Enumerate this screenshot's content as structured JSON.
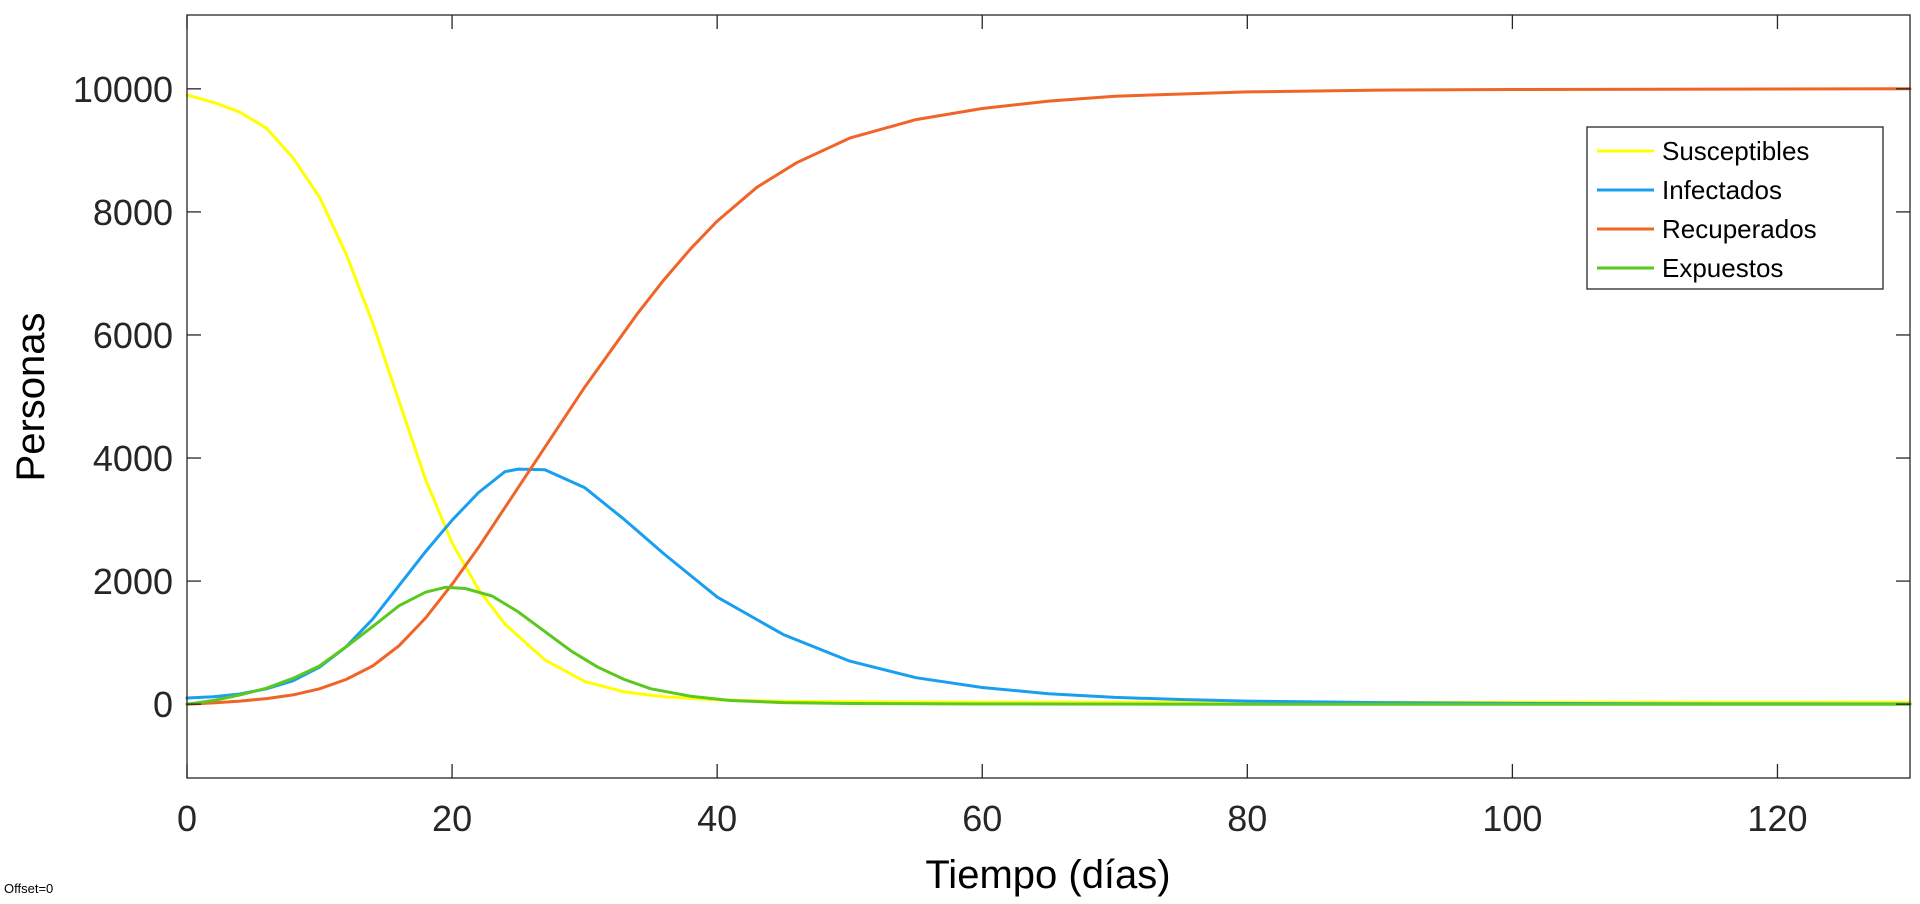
{
  "footer_note": "Offset=0",
  "chart_data": {
    "type": "line",
    "title": "",
    "xlabel": "Tiempo (días)",
    "ylabel": "Personas",
    "xlim": [
      0,
      130
    ],
    "ylim": [
      -1200,
      11200
    ],
    "xticks": [
      0,
      20,
      40,
      60,
      80,
      100,
      120
    ],
    "yticks": [
      0,
      2000,
      4000,
      6000,
      8000,
      10000
    ],
    "xtick_labels": [
      "0",
      "20",
      "40",
      "60",
      "80",
      "100",
      "120"
    ],
    "ytick_labels": [
      "0",
      "2000",
      "4000",
      "6000",
      "8000",
      "10000"
    ],
    "grid": false,
    "box": true,
    "legend_position": "top-right",
    "series": [
      {
        "name": "Susceptibles",
        "color": "#FFFF00",
        "points": [
          [
            0,
            9900
          ],
          [
            2,
            9780
          ],
          [
            4,
            9620
          ],
          [
            6,
            9360
          ],
          [
            8,
            8880
          ],
          [
            10,
            8240
          ],
          [
            12,
            7320
          ],
          [
            14,
            6200
          ],
          [
            16,
            4920
          ],
          [
            18,
            3650
          ],
          [
            20,
            2620
          ],
          [
            22,
            1860
          ],
          [
            24,
            1300
          ],
          [
            27,
            720
          ],
          [
            30,
            370
          ],
          [
            33,
            200
          ],
          [
            36,
            120
          ],
          [
            40,
            70
          ],
          [
            45,
            45
          ],
          [
            50,
            38
          ],
          [
            60,
            32
          ],
          [
            80,
            30
          ],
          [
            100,
            30
          ],
          [
            130,
            30
          ]
        ]
      },
      {
        "name": "Infectados",
        "color": "#1A9FF0",
        "points": [
          [
            0,
            100
          ],
          [
            2,
            120
          ],
          [
            4,
            165
          ],
          [
            6,
            250
          ],
          [
            8,
            380
          ],
          [
            10,
            600
          ],
          [
            12,
            930
          ],
          [
            14,
            1380
          ],
          [
            16,
            1930
          ],
          [
            18,
            2480
          ],
          [
            20,
            2990
          ],
          [
            22,
            3440
          ],
          [
            24,
            3780
          ],
          [
            25,
            3820
          ],
          [
            27,
            3810
          ],
          [
            30,
            3520
          ],
          [
            33,
            3000
          ],
          [
            36,
            2440
          ],
          [
            40,
            1740
          ],
          [
            45,
            1130
          ],
          [
            50,
            700
          ],
          [
            55,
            430
          ],
          [
            60,
            270
          ],
          [
            65,
            170
          ],
          [
            70,
            110
          ],
          [
            75,
            75
          ],
          [
            80,
            50
          ],
          [
            90,
            25
          ],
          [
            100,
            12
          ],
          [
            115,
            5
          ],
          [
            130,
            2
          ]
        ]
      },
      {
        "name": "Recuperados",
        "color": "#F06428",
        "points": [
          [
            0,
            0
          ],
          [
            2,
            20
          ],
          [
            4,
            50
          ],
          [
            6,
            90
          ],
          [
            8,
            150
          ],
          [
            10,
            250
          ],
          [
            12,
            400
          ],
          [
            14,
            620
          ],
          [
            16,
            950
          ],
          [
            18,
            1400
          ],
          [
            20,
            1950
          ],
          [
            22,
            2550
          ],
          [
            24,
            3200
          ],
          [
            26,
            3850
          ],
          [
            28,
            4500
          ],
          [
            30,
            5150
          ],
          [
            32,
            5750
          ],
          [
            34,
            6350
          ],
          [
            36,
            6900
          ],
          [
            38,
            7400
          ],
          [
            40,
            7850
          ],
          [
            43,
            8400
          ],
          [
            46,
            8800
          ],
          [
            50,
            9200
          ],
          [
            55,
            9500
          ],
          [
            60,
            9680
          ],
          [
            65,
            9800
          ],
          [
            70,
            9880
          ],
          [
            80,
            9950
          ],
          [
            90,
            9980
          ],
          [
            100,
            9990
          ],
          [
            130,
            10000
          ]
        ]
      },
      {
        "name": "Expuestos",
        "color": "#5AC81E",
        "points": [
          [
            0,
            0
          ],
          [
            2,
            60
          ],
          [
            4,
            150
          ],
          [
            6,
            260
          ],
          [
            8,
            420
          ],
          [
            10,
            620
          ],
          [
            12,
            930
          ],
          [
            14,
            1260
          ],
          [
            16,
            1600
          ],
          [
            18,
            1820
          ],
          [
            19.5,
            1900
          ],
          [
            21,
            1880
          ],
          [
            23,
            1760
          ],
          [
            25,
            1500
          ],
          [
            27,
            1180
          ],
          [
            29,
            860
          ],
          [
            31,
            600
          ],
          [
            33,
            400
          ],
          [
            35,
            250
          ],
          [
            38,
            130
          ],
          [
            41,
            60
          ],
          [
            45,
            25
          ],
          [
            50,
            10
          ],
          [
            60,
            3
          ],
          [
            80,
            0
          ],
          [
            130,
            0
          ]
        ]
      }
    ]
  }
}
